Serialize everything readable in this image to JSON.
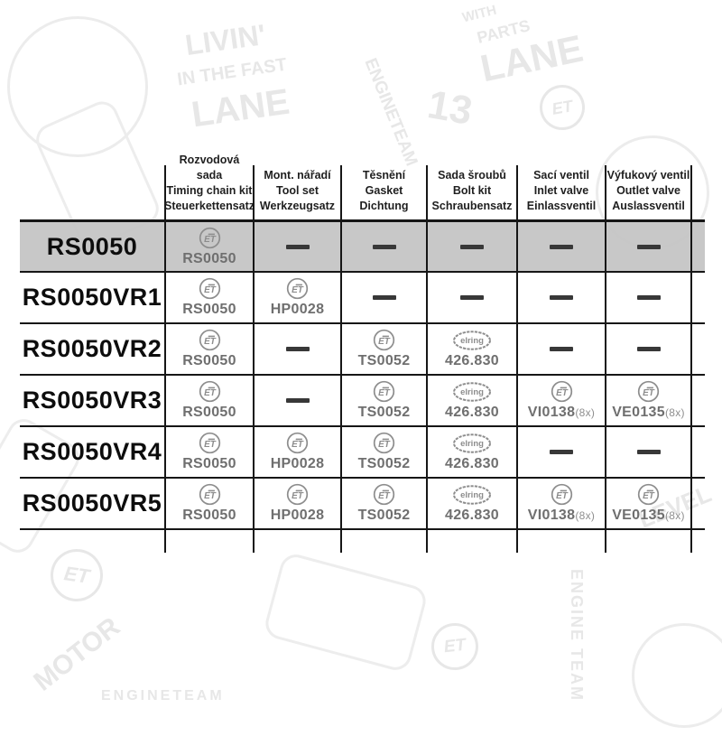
{
  "table": {
    "header": {
      "columns": [
        {
          "key": "timing-chain-kit",
          "line1": "Rozvodová sada",
          "line2": "Timing chain kit",
          "line3": "Steuerkettensatz"
        },
        {
          "key": "tool-set",
          "line1": "Mont. nářadí",
          "line2": "Tool set",
          "line3": "Werkzeugsatz"
        },
        {
          "key": "gasket",
          "line1": "Těsnění",
          "line2": "Gasket",
          "line3": "Dichtung"
        },
        {
          "key": "bolt-kit",
          "line1": "Sada šroubů",
          "line2": "Bolt kit",
          "line3": "Schraubensatz"
        },
        {
          "key": "inlet-valve",
          "line1": "Sací ventil",
          "line2": "Inlet valve",
          "line3": "Einlassventil"
        },
        {
          "key": "outlet-valve",
          "line1": "Výfukový ventil",
          "line2": "Outlet valve",
          "line3": "Auslassventil"
        }
      ]
    },
    "rows": [
      {
        "label": "RS0050",
        "highlight": true,
        "cells": [
          {
            "type": "part",
            "brand": "ET",
            "number": "RS0050"
          },
          {
            "type": "dash"
          },
          {
            "type": "dash"
          },
          {
            "type": "dash"
          },
          {
            "type": "dash"
          },
          {
            "type": "dash"
          }
        ]
      },
      {
        "label": "RS0050VR1",
        "highlight": false,
        "cells": [
          {
            "type": "part",
            "brand": "ET",
            "number": "RS0050"
          },
          {
            "type": "part",
            "brand": "ET",
            "number": "HP0028"
          },
          {
            "type": "dash"
          },
          {
            "type": "dash"
          },
          {
            "type": "dash"
          },
          {
            "type": "dash"
          }
        ]
      },
      {
        "label": "RS0050VR2",
        "highlight": false,
        "cells": [
          {
            "type": "part",
            "brand": "ET",
            "number": "RS0050"
          },
          {
            "type": "dash"
          },
          {
            "type": "part",
            "brand": "ET",
            "number": "TS0052"
          },
          {
            "type": "part",
            "brand": "elring",
            "number": "426.830"
          },
          {
            "type": "dash"
          },
          {
            "type": "dash"
          }
        ]
      },
      {
        "label": "RS0050VR3",
        "highlight": false,
        "cells": [
          {
            "type": "part",
            "brand": "ET",
            "number": "RS0050"
          },
          {
            "type": "dash"
          },
          {
            "type": "part",
            "brand": "ET",
            "number": "TS0052"
          },
          {
            "type": "part",
            "brand": "elring",
            "number": "426.830"
          },
          {
            "type": "part",
            "brand": "ET",
            "number": "VI0138",
            "suffix": "(8x)"
          },
          {
            "type": "part",
            "brand": "ET",
            "number": "VE0135",
            "suffix": "(8x)"
          }
        ]
      },
      {
        "label": "RS0050VR4",
        "highlight": false,
        "cells": [
          {
            "type": "part",
            "brand": "ET",
            "number": "RS0050"
          },
          {
            "type": "part",
            "brand": "ET",
            "number": "HP0028"
          },
          {
            "type": "part",
            "brand": "ET",
            "number": "TS0052"
          },
          {
            "type": "part",
            "brand": "elring",
            "number": "426.830"
          },
          {
            "type": "dash"
          },
          {
            "type": "dash"
          }
        ]
      },
      {
        "label": "RS0050VR5",
        "highlight": false,
        "cells": [
          {
            "type": "part",
            "brand": "ET",
            "number": "RS0050"
          },
          {
            "type": "part",
            "brand": "ET",
            "number": "HP0028"
          },
          {
            "type": "part",
            "brand": "ET",
            "number": "TS0052"
          },
          {
            "type": "part",
            "brand": "elring",
            "number": "426.830"
          },
          {
            "type": "part",
            "brand": "ET",
            "number": "VI0138",
            "suffix": "(8x)"
          },
          {
            "type": "part",
            "brand": "ET",
            "number": "VE0135",
            "suffix": "(8x)"
          }
        ]
      }
    ]
  },
  "logos": {
    "et_label": "ET",
    "elring_label": "elring"
  },
  "colors": {
    "grid_line": "#161616",
    "highlight_row": "#c4c4c4",
    "part_number": "#6f6f6f",
    "logo_gray": "#8d8d8d",
    "dash": "#383838"
  },
  "watermark": {
    "items": [
      "LIVIN'",
      "IN THE FAST",
      "LANE",
      "ENGINETEAM",
      "WITH",
      "PARTS",
      "LANE",
      "13",
      "ET",
      "ENGINETEAM",
      "ENGINE TEAM",
      "MOTOR",
      "ET",
      "LEVEL",
      "ET"
    ]
  }
}
